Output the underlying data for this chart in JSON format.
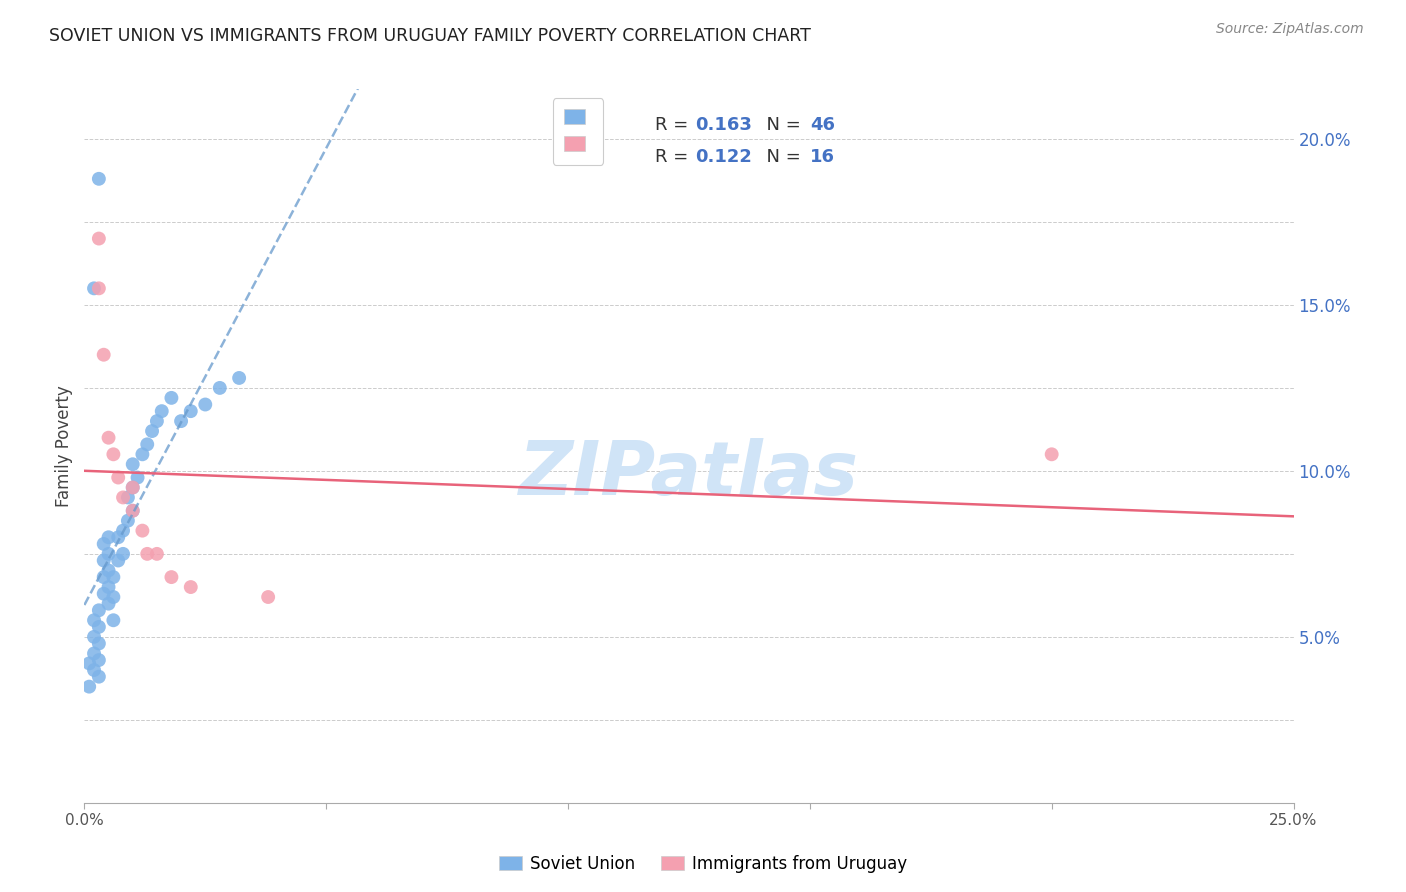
{
  "title": "SOVIET UNION VS IMMIGRANTS FROM URUGUAY FAMILY POVERTY CORRELATION CHART",
  "source": "Source: ZipAtlas.com",
  "ylabel": "Family Poverty",
  "ytick_labels": [
    "5.0%",
    "10.0%",
    "15.0%",
    "20.0%"
  ],
  "ytick_values": [
    0.05,
    0.1,
    0.15,
    0.2
  ],
  "xmin": 0.0,
  "xmax": 0.25,
  "ymin": 0.0,
  "ymax": 0.215,
  "R_soviet": 0.163,
  "N_soviet": 46,
  "R_uruguay": 0.122,
  "N_uruguay": 16,
  "soviet_color": "#7EB3E8",
  "uruguay_color": "#F4A0B0",
  "soviet_line_color": "#6699CC",
  "uruguay_line_color": "#E8637A",
  "watermark": "ZIPatlas",
  "watermark_color": "#D0E4F7",
  "soviet_x": [
    0.001,
    0.001,
    0.002,
    0.002,
    0.002,
    0.002,
    0.003,
    0.003,
    0.003,
    0.003,
    0.003,
    0.004,
    0.004,
    0.004,
    0.004,
    0.005,
    0.005,
    0.005,
    0.005,
    0.005,
    0.006,
    0.006,
    0.006,
    0.007,
    0.007,
    0.008,
    0.008,
    0.009,
    0.009,
    0.01,
    0.01,
    0.01,
    0.011,
    0.012,
    0.013,
    0.014,
    0.015,
    0.016,
    0.018,
    0.02,
    0.022,
    0.025,
    0.028,
    0.032,
    0.002,
    0.003
  ],
  "soviet_y": [
    0.035,
    0.042,
    0.04,
    0.045,
    0.05,
    0.055,
    0.038,
    0.043,
    0.048,
    0.053,
    0.058,
    0.063,
    0.068,
    0.073,
    0.078,
    0.06,
    0.065,
    0.07,
    0.075,
    0.08,
    0.055,
    0.062,
    0.068,
    0.073,
    0.08,
    0.075,
    0.082,
    0.085,
    0.092,
    0.088,
    0.095,
    0.102,
    0.098,
    0.105,
    0.108,
    0.112,
    0.115,
    0.118,
    0.122,
    0.115,
    0.118,
    0.12,
    0.125,
    0.128,
    0.155,
    0.188
  ],
  "uruguay_x": [
    0.003,
    0.003,
    0.004,
    0.005,
    0.006,
    0.007,
    0.008,
    0.01,
    0.01,
    0.012,
    0.013,
    0.015,
    0.018,
    0.022,
    0.2,
    0.038
  ],
  "uruguay_y": [
    0.155,
    0.17,
    0.135,
    0.11,
    0.105,
    0.098,
    0.092,
    0.088,
    0.095,
    0.082,
    0.075,
    0.075,
    0.068,
    0.065,
    0.105,
    0.062
  ]
}
